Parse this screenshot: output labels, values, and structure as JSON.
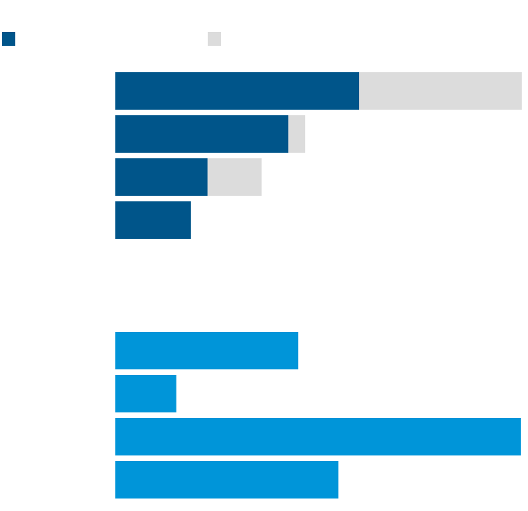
{
  "chart_data": [
    {
      "type": "stacked_bar",
      "orientation": "horizontal",
      "categories": [
        null,
        null,
        null,
        null
      ],
      "series": [
        {
          "name": null,
          "color": "#00558a",
          "values": [
            60,
            42.6,
            22.7,
            18.6
          ]
        },
        {
          "name": null,
          "color": "#dcdcdc",
          "values": [
            40,
            4.1,
            13.3,
            0
          ]
        }
      ],
      "xlim": [
        0,
        100
      ],
      "legend": "top-left"
    },
    {
      "type": "bar",
      "orientation": "horizontal",
      "categories": [
        null,
        null,
        null,
        null
      ],
      "values": [
        45,
        15,
        99.8,
        54.9
      ],
      "color": "#0095d9",
      "xlim": [
        0,
        100
      ]
    }
  ]
}
